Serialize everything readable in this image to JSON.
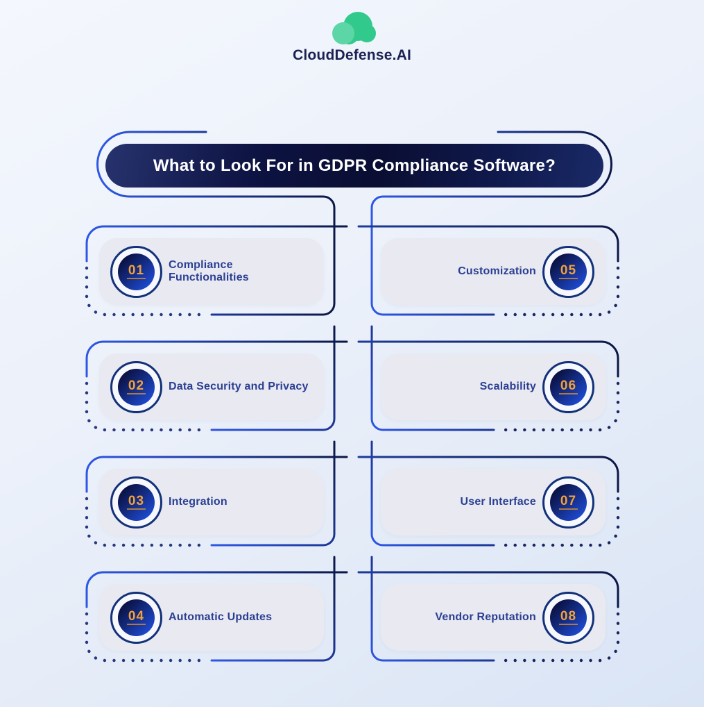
{
  "logo": {
    "brand": "CloudDefense.AI"
  },
  "banner": {
    "title": "What to Look For in GDPR Compliance Software?"
  },
  "items": [
    {
      "number": "01",
      "label": "Compliance Functionalities",
      "side": "left"
    },
    {
      "number": "02",
      "label": "Data Security and Privacy",
      "side": "left"
    },
    {
      "number": "03",
      "label": "Integration",
      "side": "left"
    },
    {
      "number": "04",
      "label": "Automatic Updates",
      "side": "left"
    },
    {
      "number": "05",
      "label": "Customization",
      "side": "right"
    },
    {
      "number": "06",
      "label": "Scalability",
      "side": "right"
    },
    {
      "number": "07",
      "label": "User Interface",
      "side": "right"
    },
    {
      "number": "08",
      "label": "Vendor Reputation",
      "side": "right"
    }
  ],
  "colors": {
    "line_bright": "#2e57e6",
    "line_dark": "#0b1747",
    "dot_left": "#26387f",
    "dot_right": "#17265f",
    "number_orange": "#f1a13a",
    "label_navy": "#2b3f93",
    "card_bg": "#e8e9f1",
    "badge_ring": "#123179",
    "badge_core_dark": "#0a0f3c",
    "badge_core_bright": "#1e4ad1",
    "brand_navy": "#1b2153",
    "logo_green_main": "#32ca8c",
    "logo_green_light": "#5cd6a6"
  }
}
